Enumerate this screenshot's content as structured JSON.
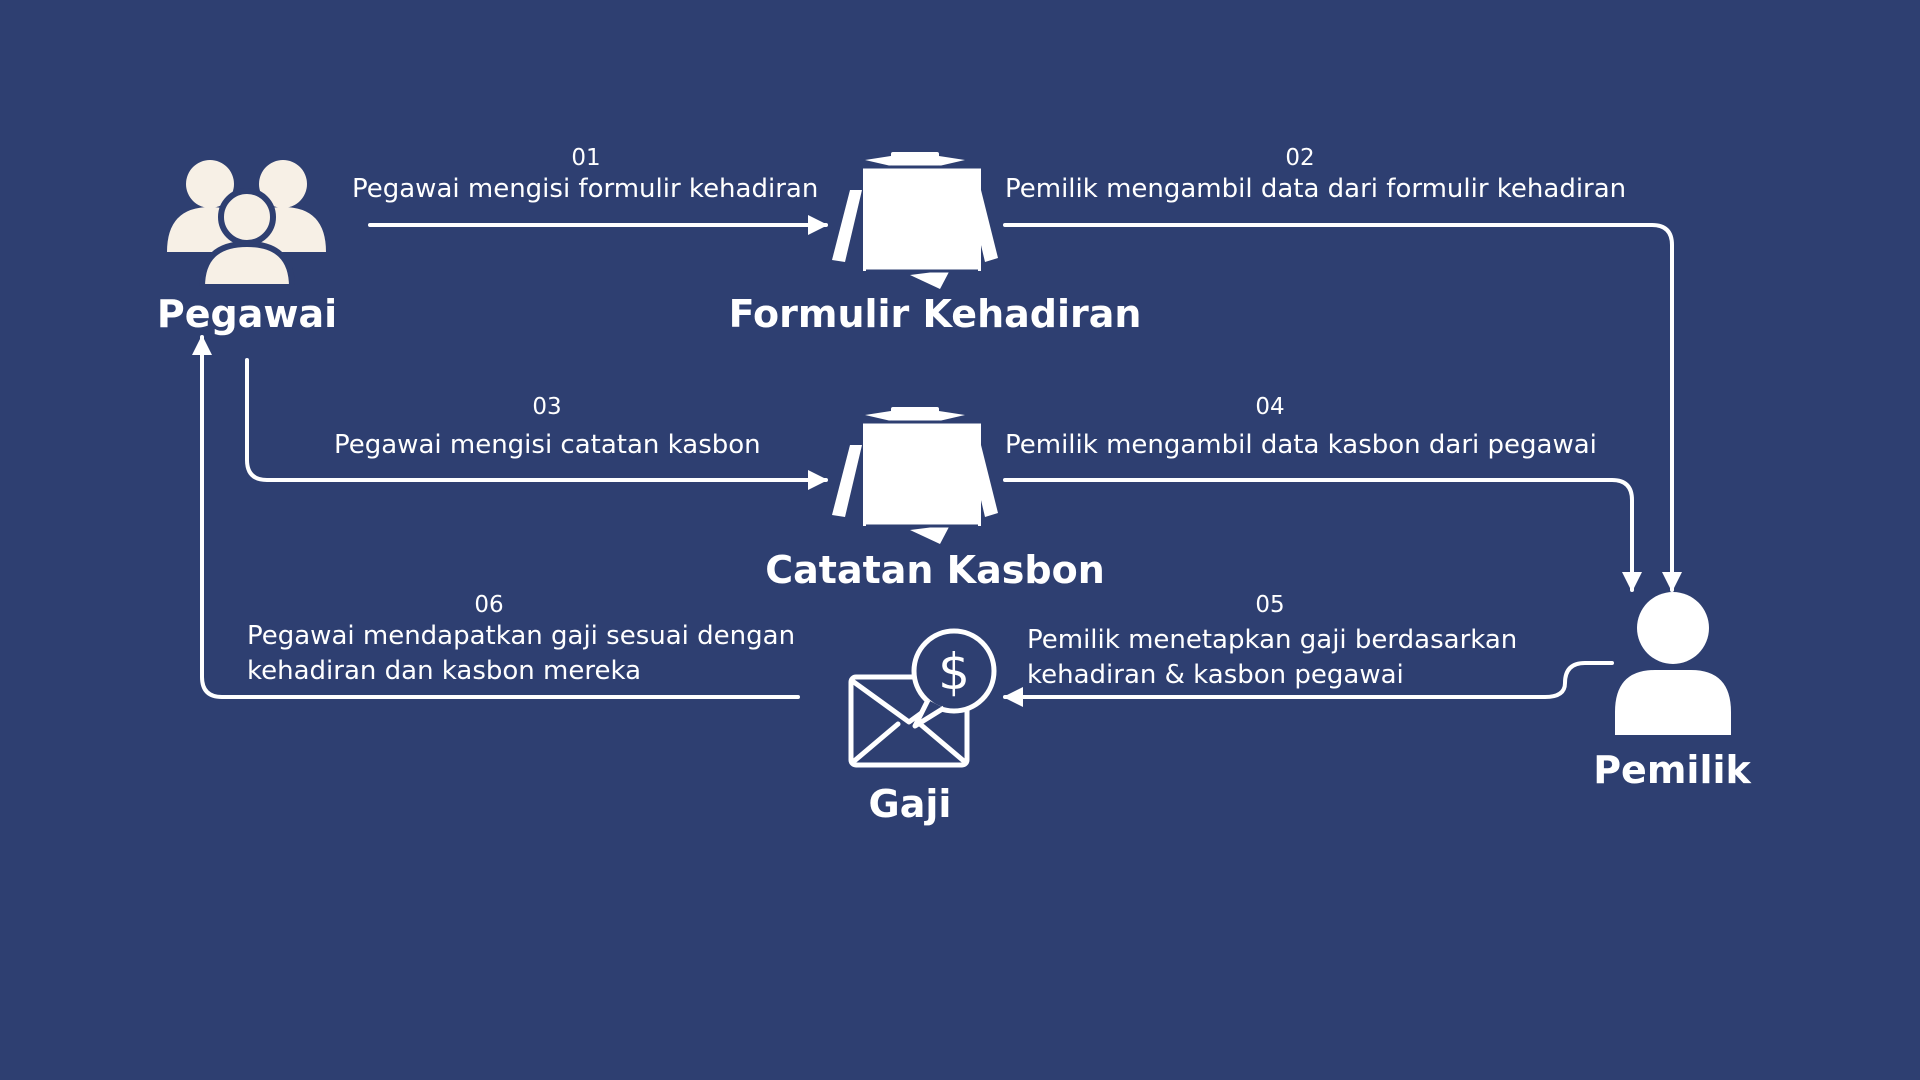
{
  "colors": {
    "background": "#2e3f71",
    "line": "#ffffff",
    "icon_cream": "#f7f0e6",
    "icon_white": "#ffffff"
  },
  "nodes": {
    "pegawai": {
      "label": "Pegawai",
      "icon": "people-group-icon"
    },
    "formulir": {
      "label": "Formulir Kehadiran",
      "icon": "clipboard-document-icon"
    },
    "kasbon": {
      "label": "Catatan Kasbon",
      "icon": "clipboard-document-icon"
    },
    "pemilik": {
      "label": "Pemilik",
      "icon": "user-icon"
    },
    "gaji": {
      "label": "Gaji",
      "icon": "envelope-dollar-icon"
    }
  },
  "steps": [
    {
      "number": "01",
      "text": [
        "Pegawai mengisi formulir kehadiran"
      ]
    },
    {
      "number": "02",
      "text": [
        "Pemilik mengambil data dari formulir kehadiran"
      ]
    },
    {
      "number": "03",
      "text": [
        "Pegawai mengisi catatan kasbon"
      ]
    },
    {
      "number": "04",
      "text": [
        "Pemilik mengambil data kasbon dari pegawai"
      ]
    },
    {
      "number": "05",
      "text": [
        "Pemilik menetapkan gaji berdasarkan",
        "kehadiran & kasbon pegawai"
      ]
    },
    {
      "number": "06",
      "text": [
        "Pegawai mendapatkan gaji sesuai dengan",
        "kehadiran dan kasbon mereka"
      ]
    }
  ]
}
